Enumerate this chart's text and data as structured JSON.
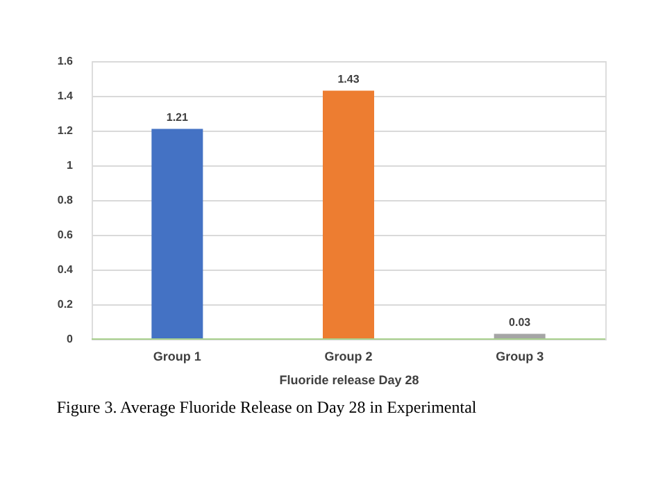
{
  "chart_data": {
    "type": "bar",
    "categories": [
      "Group 1",
      "Group 2",
      "Group 3"
    ],
    "values": [
      1.21,
      1.43,
      0.03
    ],
    "colors": [
      "#4472c4",
      "#ed7d31",
      "#a5a5a5"
    ],
    "xlabel": "Fluoride release Day 28",
    "ylim": [
      0,
      1.6
    ],
    "yticks": [
      0,
      0.2,
      0.4,
      0.6,
      0.8,
      1,
      1.2,
      1.4,
      1.6
    ],
    "grid": "y",
    "data_labels": true,
    "annotations": [
      "Figure 3. Average Fluoride Release on Day 28 in Experimental"
    ]
  }
}
